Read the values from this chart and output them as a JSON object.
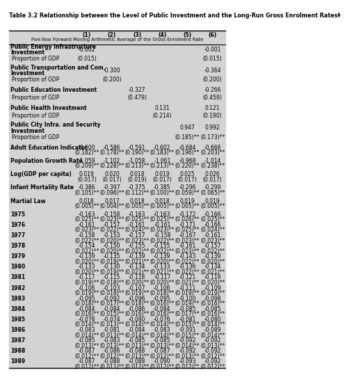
{
  "title": "Table 3.2 Relationship between the Level of Public Investment and the Long-Run Gross Enrolment Rates‡",
  "subtitle": "Five-Year Forward Moving Arithmetic Average of the Gross Enrolment Rate",
  "col_headers": [
    "(1)",
    "(2)",
    "(3)",
    "(4)",
    "(5)",
    "(6)"
  ],
  "rows": [
    {
      "label": "Public Energy Infrastructure\nInvestment",
      "bold": true,
      "values": [
        "-0.002",
        "",
        "",
        "",
        "",
        "-0.001"
      ]
    },
    {
      "label": "  Proportion of GDP",
      "bold": false,
      "values": [
        "(0.015)",
        "",
        "",
        "",
        "",
        "(0.015)"
      ]
    },
    {
      "label": "",
      "bold": false,
      "values": [
        "",
        "",
        "",
        "",
        "",
        ""
      ]
    },
    {
      "label": "Public Transportation and Com.\nInvestment",
      "bold": true,
      "values": [
        "",
        "-0.300",
        "",
        "",
        "",
        "-0.364"
      ]
    },
    {
      "label": "  Proportion of GDP",
      "bold": false,
      "values": [
        "",
        "(0.200)",
        "",
        "",
        "",
        "(0.200)"
      ]
    },
    {
      "label": "",
      "bold": false,
      "values": [
        "",
        "",
        "",
        "",
        "",
        ""
      ]
    },
    {
      "label": "Public Education Investment",
      "bold": true,
      "values": [
        "",
        "",
        "-0.327",
        "",
        "",
        "-0.266"
      ]
    },
    {
      "label": "  Proportion of GDP",
      "bold": false,
      "values": [
        "",
        "",
        "(0.479)",
        "",
        "",
        "(0.459)"
      ]
    },
    {
      "label": "",
      "bold": false,
      "values": [
        "",
        "",
        "",
        "",
        "",
        ""
      ]
    },
    {
      "label": "Public Health Investment",
      "bold": true,
      "values": [
        "",
        "",
        "",
        "0.131",
        "",
        "0.121"
      ]
    },
    {
      "label": "  Proportion of GDP",
      "bold": false,
      "values": [
        "",
        "",
        "",
        "(0.214)",
        "",
        "(0.190)"
      ]
    },
    {
      "label": "",
      "bold": false,
      "values": [
        "",
        "",
        "",
        "",
        "",
        ""
      ]
    },
    {
      "label": "Public City Infra. and Security\nInvestment",
      "bold": true,
      "values": [
        "",
        "",
        "",
        "",
        "0.947",
        "0.992"
      ]
    },
    {
      "label": "  Proportion of GDP",
      "bold": false,
      "values": [
        "",
        "",
        "",
        "",
        "(0.185)**",
        "(0.173)**"
      ]
    },
    {
      "label": "",
      "bold": false,
      "values": [
        "",
        "",
        "",
        "",
        "",
        ""
      ]
    },
    {
      "label": "Adult Education Indicator",
      "bold": true,
      "values": [
        "-0.600",
        "-0.586",
        "-0.591",
        "-0.602",
        "-0.684",
        "-0.666"
      ]
    },
    {
      "label": "",
      "bold": false,
      "values": [
        "(0.182)**",
        "(0.178)**",
        "(0.190)**",
        "(0.183)**",
        "(0.196)**",
        "(0.203)**"
      ]
    },
    {
      "label": "",
      "bold": false,
      "values": [
        "",
        "",
        "",
        "",
        "",
        ""
      ]
    },
    {
      "label": "Population Growth Rate",
      "bold": true,
      "values": [
        "-1.059",
        "-1.102",
        "-1.058",
        "-1.061",
        "-0.968",
        "-1.014"
      ]
    },
    {
      "label": "",
      "bold": false,
      "values": [
        "(0.209)**",
        "(0.228)**",
        "(0.213)**",
        "(0.213)**",
        "(0.220)**",
        "(0.238)**"
      ]
    },
    {
      "label": "",
      "bold": false,
      "values": [
        "",
        "",
        "",
        "",
        "",
        ""
      ]
    },
    {
      "label": "Log(GDP per capita)",
      "bold": true,
      "values": [
        "0.019",
        "0.020",
        "0.018",
        "0.019",
        "0.025",
        "0.026"
      ]
    },
    {
      "label": "",
      "bold": false,
      "values": [
        "(0.017)",
        "(0.017)",
        "(0.019)",
        "(0.017)",
        "(0.017)",
        "(0.017)"
      ]
    },
    {
      "label": "",
      "bold": false,
      "values": [
        "",
        "",
        "",
        "",
        "",
        ""
      ]
    },
    {
      "label": "Infant Mortality Rate",
      "bold": true,
      "values": [
        "-0.386",
        "-0.397",
        "-0.375",
        "-0.385",
        "-0.296",
        "-0.299"
      ]
    },
    {
      "label": "",
      "bold": false,
      "values": [
        "(0.105)**",
        "(0.096)**",
        "(0.112)**",
        "(0.100)**",
        "(0.059)**",
        "(0.065)**"
      ]
    },
    {
      "label": "",
      "bold": false,
      "values": [
        "",
        "",
        "",
        "",
        "",
        ""
      ]
    },
    {
      "label": "Martial Law",
      "bold": true,
      "values": [
        "0.018",
        "0.017",
        "0.018",
        "0.018",
        "0.019",
        "0.019"
      ]
    },
    {
      "label": "",
      "bold": false,
      "values": [
        "(0.005)**",
        "(0.004)**",
        "(0.005)**",
        "(0.005)**",
        "(0.005)**",
        "(0.005)**"
      ]
    },
    {
      "label": "",
      "bold": false,
      "values": [
        "",
        "",
        "",
        "",
        "",
        ""
      ]
    },
    {
      "label": "1975",
      "bold": true,
      "values": [
        "-0.163",
        "-0.158",
        "-0.163",
        "-0.163",
        "-0.172",
        "-0.166"
      ]
    },
    {
      "label": "",
      "bold": false,
      "values": [
        "(0.025)**",
        "(0.023)**",
        "(0.025)**",
        "(0.025)**",
        "(0.026)**",
        "(0.025)**"
      ]
    },
    {
      "label": "1976",
      "bold": true,
      "values": [
        "-0.161",
        "-0.157",
        "-0.161",
        "-0.161",
        "-0.171",
        "-0.166"
      ]
    },
    {
      "label": "",
      "bold": false,
      "values": [
        "(0.023)**",
        "(0.022)**",
        "(0.024)**",
        "(0.023)**",
        "(0.025)**",
        "(0.024)**"
      ]
    },
    {
      "label": "1977",
      "bold": true,
      "values": [
        "-0.158",
        "-0.153",
        "-0.157",
        "-0.158",
        "-0.167",
        "-0.161"
      ]
    },
    {
      "label": "",
      "bold": false,
      "values": [
        "(0.022)**",
        "(0.020)**",
        "(0.023)**",
        "(0.022)**",
        "(0.023)**",
        "(0.023)**"
      ]
    },
    {
      "label": "1978",
      "bold": true,
      "values": [
        "-0.154",
        "-0.150",
        "-0.155",
        "-0.155",
        "-0.161",
        "-0.157"
      ]
    },
    {
      "label": "",
      "bold": false,
      "values": [
        "(0.022)**",
        "(0.020)**",
        "(0.022)**",
        "(0.022)**",
        "(0.023)**",
        "(0.022)**"
      ]
    },
    {
      "label": "1979",
      "bold": true,
      "values": [
        "-0.139",
        "-0.135",
        "-0.139",
        "-0.139",
        "-0.143",
        "-0.139"
      ]
    },
    {
      "label": "",
      "bold": false,
      "values": [
        "(0.020)**",
        "(0.019)**",
        "(0.021)**",
        "(0.020)**",
        "(0.022)**",
        "(0.020)**"
      ]
    },
    {
      "label": "1980",
      "bold": true,
      "values": [
        "-0.133",
        "-0.130",
        "-0.134",
        "-0.133",
        "-0.136",
        "-0.134"
      ]
    },
    {
      "label": "",
      "bold": false,
      "values": [
        "(0.020)**",
        "(0.019)**",
        "(0.021)**",
        "(0.021)**",
        "(0.022)**",
        "(0.021)**"
      ]
    },
    {
      "label": "1981",
      "bold": true,
      "values": [
        "-0.117",
        "-0.115",
        "-0.118",
        "-0.117",
        "-0.121",
        "-0.119"
      ]
    },
    {
      "label": "",
      "bold": false,
      "values": [
        "(0.019)**",
        "(0.018)**",
        "(0.020)**",
        "(0.020)**",
        "(0.021)**",
        "(0.020)**"
      ]
    },
    {
      "label": "1982",
      "bold": true,
      "values": [
        "-0.106",
        "-0.103",
        "-0.107",
        "-0.106",
        "-0.111",
        "-0.109"
      ]
    },
    {
      "label": "",
      "bold": false,
      "values": [
        "(0.019)**",
        "(0.018)**",
        "(0.019)**",
        "(0.018)**",
        "(0.019)**",
        "(0.019)**"
      ]
    },
    {
      "label": "1983",
      "bold": true,
      "values": [
        "-0.095",
        "-0.092",
        "-0.096",
        "-0.095",
        "-0.100",
        "-0.098"
      ]
    },
    {
      "label": "",
      "bold": false,
      "values": [
        "(0.018)**",
        "(0.017)**",
        "(0.018)**",
        "(0.016)**",
        "(0.019)**",
        "(0.016)**"
      ]
    },
    {
      "label": "1984",
      "bold": true,
      "values": [
        "-0.084",
        "-0.084",
        "-0.086",
        "-0.084",
        "-0.085",
        "-0.085"
      ]
    },
    {
      "label": "",
      "bold": false,
      "values": [
        "(0.016)**",
        "(0.015)**",
        "(0.016)**",
        "(0.016)**",
        "(0.017)**",
        "(0.016)**"
      ]
    },
    {
      "label": "1985",
      "bold": true,
      "values": [
        "-0.076",
        "-0.074",
        "-0.080",
        "-0.076",
        "-0.081",
        "-0.080"
      ]
    },
    {
      "label": "",
      "bold": false,
      "values": [
        "(0.014)**",
        "(0.013)**",
        "(0.014)**",
        "(0.014)**",
        "(0.015)**",
        "(0.014)**"
      ]
    },
    {
      "label": "1986",
      "bold": true,
      "values": [
        "-0.083",
        "-0.081",
        "-0.084",
        "-0.083",
        "-0.091",
        "-0.089"
      ]
    },
    {
      "label": "",
      "bold": false,
      "values": [
        "(0.014)**",
        "(0.013)**",
        "(0.014)**",
        "(0.014)**",
        "(0.015)**",
        "(0.014)**"
      ]
    },
    {
      "label": "1987",
      "bold": true,
      "values": [
        "-0.085",
        "-0.083",
        "-0.085",
        "-0.085",
        "-0.092",
        "-0.092"
      ]
    },
    {
      "label": "",
      "bold": false,
      "values": [
        "(0.013)**",
        "(0.013)**",
        "(0.013)**",
        "(0.013)**",
        "(0.014)**",
        "(0.013)**"
      ]
    },
    {
      "label": "1988",
      "bold": true,
      "values": [
        "-0.087",
        "-0.086",
        "-0.088",
        "-0.087",
        "-0.092",
        "-0.092"
      ]
    },
    {
      "label": "",
      "bold": false,
      "values": [
        "(0.012)**",
        "(0.012)**",
        "(0.013)**",
        "(0.012)**",
        "(0.013)**",
        "(0.012)**"
      ]
    },
    {
      "label": "1989",
      "bold": true,
      "values": [
        "-0.087",
        "-0.088",
        "-0.088",
        "-0.090",
        "-0.093",
        "-0.092"
      ]
    },
    {
      "label": "",
      "bold": false,
      "values": [
        "(0.012)**",
        "(0.011)**",
        "(0.012)**",
        "(0.012)**",
        "(0.012)**",
        "(0.012)**"
      ]
    }
  ],
  "bg_color": "#d3d3d3",
  "font_size": 5.5
}
